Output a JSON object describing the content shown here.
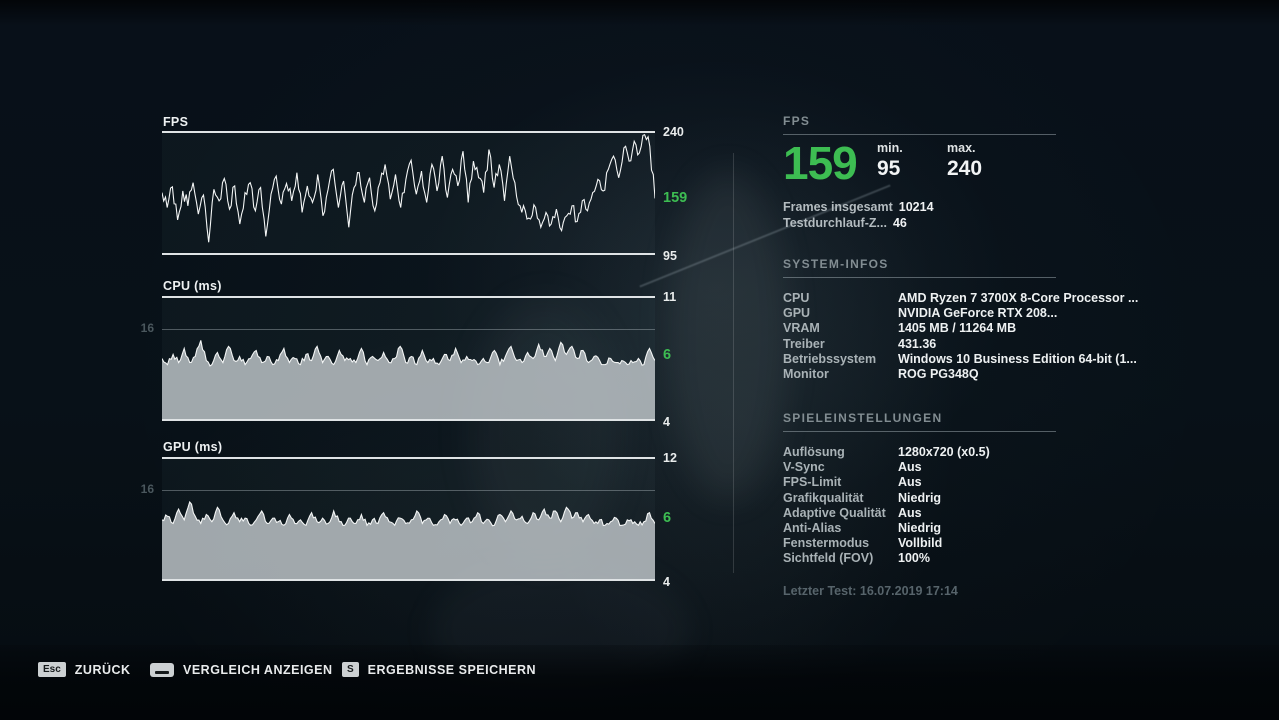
{
  "colors": {
    "accent_green": "#3dbd52",
    "line_white": "#f4f6f6",
    "area_fill_gray": "#c6cccf"
  },
  "chart_data": [
    {
      "type": "line",
      "title": "FPS",
      "y_top_label": 240,
      "y_bottom_label": 95,
      "current_value": 159,
      "left_ref_label": null,
      "render_range": [
        95,
        240
      ],
      "jitter": 8,
      "fill": false,
      "series": [
        168,
        150,
        175,
        135,
        170,
        152,
        180,
        142,
        165,
        108,
        172,
        158,
        185,
        148,
        176,
        130,
        168,
        180,
        146,
        174,
        115,
        166,
        188,
        154,
        179,
        158,
        192,
        144,
        176,
        156,
        190,
        140,
        172,
        196,
        150,
        182,
        126,
        174,
        192,
        156,
        186,
        146,
        180,
        202,
        160,
        190,
        150,
        184,
        207,
        166,
        194,
        156,
        202,
        170,
        212,
        162,
        196,
        176,
        218,
        156,
        206,
        186,
        168,
        220,
        174,
        202,
        158,
        212,
        180,
        152,
        146,
        136,
        150,
        126,
        144,
        130,
        148,
        122,
        140,
        152,
        133,
        158,
        146,
        168,
        184,
        170,
        196,
        212,
        186,
        222,
        206,
        230,
        216,
        238,
        224,
        161
      ]
    },
    {
      "type": "area",
      "title": "CPU (ms)",
      "y_top_label": 11,
      "y_bottom_label": 4,
      "current_value": 6,
      "left_ref_label": 16,
      "render_range": [
        3.4,
        9.4
      ],
      "jitter": 0.14,
      "fill": true,
      "series": [
        6.4,
        6.1,
        6.6,
        6.2,
        6.9,
        6.2,
        6.5,
        7.3,
        6.3,
        6.1,
        6.7,
        6.2,
        7.0,
        6.3,
        6.5,
        6.1,
        6.4,
        6.8,
        6.2,
        6.5,
        6.1,
        6.3,
        6.9,
        6.2,
        6.4,
        6.1,
        6.6,
        6.3,
        7.0,
        6.2,
        6.5,
        6.1,
        6.8,
        6.3,
        6.4,
        6.2,
        6.9,
        6.1,
        6.5,
        6.3,
        6.7,
        6.2,
        6.4,
        7.0,
        6.2,
        6.5,
        6.1,
        6.8,
        6.2,
        6.4,
        6.1,
        6.6,
        6.3,
        6.9,
        6.2,
        6.5,
        6.3,
        6.1,
        6.4,
        6.2,
        6.8,
        6.1,
        6.5,
        7.0,
        6.3,
        6.2,
        6.7,
        6.4,
        7.1,
        6.5,
        6.9,
        6.3,
        7.2,
        6.6,
        7.0,
        6.4,
        6.8,
        6.2,
        6.5,
        6.3,
        6.1,
        6.4,
        6.2,
        6.3,
        6.1,
        6.2,
        6.4,
        6.1,
        6.9,
        6.3
      ]
    },
    {
      "type": "area",
      "title": "GPU (ms)",
      "y_top_label": 12,
      "y_bottom_label": 4,
      "current_value": 6,
      "left_ref_label": 16,
      "render_range": [
        3.2,
        9.9
      ],
      "jitter": 0.15,
      "fill": true,
      "series": [
        6.5,
        6.7,
        6.3,
        7.1,
        6.5,
        7.5,
        6.7,
        6.3,
        6.8,
        6.4,
        7.2,
        6.5,
        6.3,
        6.9,
        6.4,
        6.6,
        6.2,
        6.5,
        7.0,
        6.3,
        6.6,
        6.4,
        6.2,
        6.8,
        6.3,
        6.5,
        6.2,
        6.9,
        6.4,
        6.6,
        6.3,
        7.0,
        6.4,
        6.2,
        6.6,
        6.3,
        6.8,
        6.2,
        6.5,
        6.3,
        6.9,
        6.4,
        6.2,
        6.6,
        6.3,
        6.5,
        7.0,
        6.3,
        6.6,
        6.2,
        6.4,
        6.8,
        6.3,
        6.5,
        6.2,
        6.6,
        6.4,
        6.9,
        6.3,
        6.5,
        6.2,
        6.8,
        6.4,
        7.0,
        6.5,
        6.7,
        6.3,
        6.9,
        6.5,
        7.1,
        6.6,
        7.0,
        6.4,
        7.2,
        6.6,
        6.9,
        6.4,
        6.8,
        6.3,
        6.5,
        6.2,
        6.4,
        6.6,
        6.2,
        6.5,
        6.3,
        6.2,
        6.4,
        6.9,
        6.3
      ]
    }
  ],
  "fps_panel": {
    "header": "FPS",
    "value": "159",
    "min_label": "min.",
    "min_value": "95",
    "max_label": "max.",
    "max_value": "240",
    "frames_label": "Frames insgesamt",
    "frames_value": "10214",
    "runs_label": "Testdurchlauf-Z...",
    "runs_value": "46"
  },
  "system_info": {
    "header": "SYSTEM-INFOS",
    "rows": [
      {
        "label": "CPU",
        "value": "AMD Ryzen 7 3700X 8-Core Processor ..."
      },
      {
        "label": "GPU",
        "value": "NVIDIA GeForce RTX 208..."
      },
      {
        "label": "VRAM",
        "value": "1405 MB / 11264 MB"
      },
      {
        "label": "Treiber",
        "value": "431.36"
      },
      {
        "label": "Betriebssystem",
        "value": "Windows 10 Business Edition 64-bit (1..."
      },
      {
        "label": "Monitor",
        "value": "ROG PG348Q"
      }
    ]
  },
  "game_settings": {
    "header": "SPIELEINSTELLUNGEN",
    "rows": [
      {
        "label": "Auflösung",
        "value": "1280x720 (x0.5)"
      },
      {
        "label": "V-Sync",
        "value": "Aus"
      },
      {
        "label": "FPS-Limit",
        "value": "Aus"
      },
      {
        "label": "Grafikqualität",
        "value": "Niedrig"
      },
      {
        "label": "Adaptive Qualität",
        "value": "Aus"
      },
      {
        "label": "Anti-Alias",
        "value": "Niedrig"
      },
      {
        "label": "Fenstermodus",
        "value": "Vollbild"
      },
      {
        "label": "Sichtfeld (FOV)",
        "value": "100%"
      }
    ]
  },
  "last_test": "Letzter Test: 16.07.2019 17:14",
  "hotkeys": {
    "back": {
      "key": "Esc",
      "label": "ZURÜCK"
    },
    "compare": {
      "key": "spacebar",
      "label": "VERGLEICH ANZEIGEN"
    },
    "save": {
      "key": "S",
      "label": "ERGEBNISSE SPEICHERN"
    }
  }
}
